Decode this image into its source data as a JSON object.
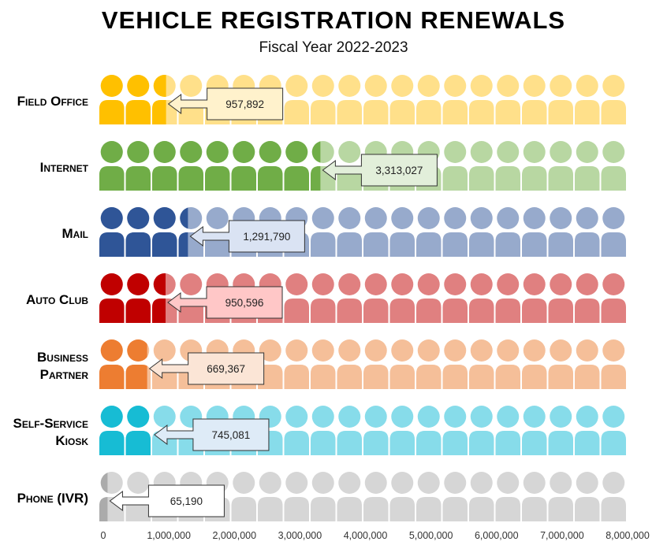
{
  "chart_data": {
    "type": "pictograph-bar",
    "title": "VEHICLE REGISTRATION RENEWALS",
    "subtitle": "Fiscal Year 2022-2023",
    "xlim": [
      0,
      8000000
    ],
    "units_per_icon": 400000,
    "icon": "person-icon",
    "x_ticks": [
      "0",
      "1,000,000",
      "2,000,000",
      "3,000,000",
      "4,000,000",
      "5,000,000",
      "6,000,000",
      "7,000,000",
      "8,000,000"
    ],
    "x_tick_values": [
      0,
      1000000,
      2000000,
      3000000,
      4000000,
      5000000,
      6000000,
      7000000,
      8000000
    ],
    "categories": [
      {
        "label": [
          "Field Office"
        ],
        "value": 957892,
        "value_label": "957,892",
        "color": "#FFC000",
        "light": "#FFE08A",
        "box": "#FFF2CC"
      },
      {
        "label": [
          "Internet"
        ],
        "value": 3313027,
        "value_label": "3,313,027",
        "color": "#70AD47",
        "light": "#B8D7A2",
        "box": "#E2EFDA"
      },
      {
        "label": [
          "Mail"
        ],
        "value": 1291790,
        "value_label": "1,291,790",
        "color": "#2F5597",
        "light": "#97AACC",
        "box": "#DAE3F3"
      },
      {
        "label": [
          "Auto Club"
        ],
        "value": 950596,
        "value_label": "950,596",
        "color": "#C00000",
        "light": "#E08080",
        "box": "#FFC7C7"
      },
      {
        "label": [
          "Business",
          "Partner"
        ],
        "value": 669367,
        "value_label": "669,367",
        "color": "#ED7D31",
        "light": "#F5BF99",
        "box": "#FBE5D6"
      },
      {
        "label": [
          "Self-Service",
          "Kiosk"
        ],
        "value": 745081,
        "value_label": "745,081",
        "color": "#17BCD4",
        "light": "#87DCEA",
        "box": "#DEEBF7"
      },
      {
        "label": [
          "Phone (IVR)"
        ],
        "value": 65190,
        "value_label": "65,190",
        "color": "#ABABAB",
        "light": "#D6D6D6",
        "box": "#FFFFFF"
      }
    ]
  }
}
